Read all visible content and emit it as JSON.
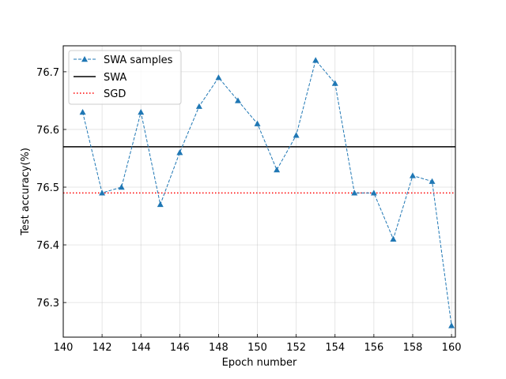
{
  "chart_data": {
    "type": "line",
    "title": "",
    "xlabel": "Epoch number",
    "ylabel": "Test accuracy(%)",
    "xlim": [
      140,
      160.2
    ],
    "ylim": [
      76.24,
      76.745
    ],
    "xticks": [
      140,
      142,
      144,
      146,
      148,
      150,
      152,
      154,
      156,
      158,
      160
    ],
    "yticks": [
      76.3,
      76.4,
      76.5,
      76.6,
      76.7
    ],
    "xtick_labels": [
      "140",
      "142",
      "144",
      "146",
      "148",
      "150",
      "152",
      "154",
      "156",
      "158",
      "160"
    ],
    "ytick_labels": [
      "76.3",
      "76.4",
      "76.5",
      "76.6",
      "76.7"
    ],
    "grid": true,
    "legend_position": "upper-left",
    "series": [
      {
        "name": "SWA samples",
        "kind": "dashed-line-triangle-markers",
        "color": "#1f77b4",
        "x": [
          141,
          142,
          143,
          144,
          145,
          146,
          147,
          148,
          149,
          150,
          151,
          152,
          153,
          154,
          155,
          156,
          157,
          158,
          159,
          160
        ],
        "y": [
          76.63,
          76.49,
          76.5,
          76.63,
          76.47,
          76.56,
          76.64,
          76.69,
          76.65,
          76.61,
          76.53,
          76.59,
          76.72,
          76.68,
          76.49,
          76.49,
          76.41,
          76.52,
          76.51,
          76.26
        ]
      },
      {
        "name": "SWA",
        "kind": "horizontal-solid",
        "color": "#000000",
        "y": 76.57
      },
      {
        "name": "SGD",
        "kind": "horizontal-dotted",
        "color": "#ff0000",
        "y": 76.49
      }
    ]
  }
}
